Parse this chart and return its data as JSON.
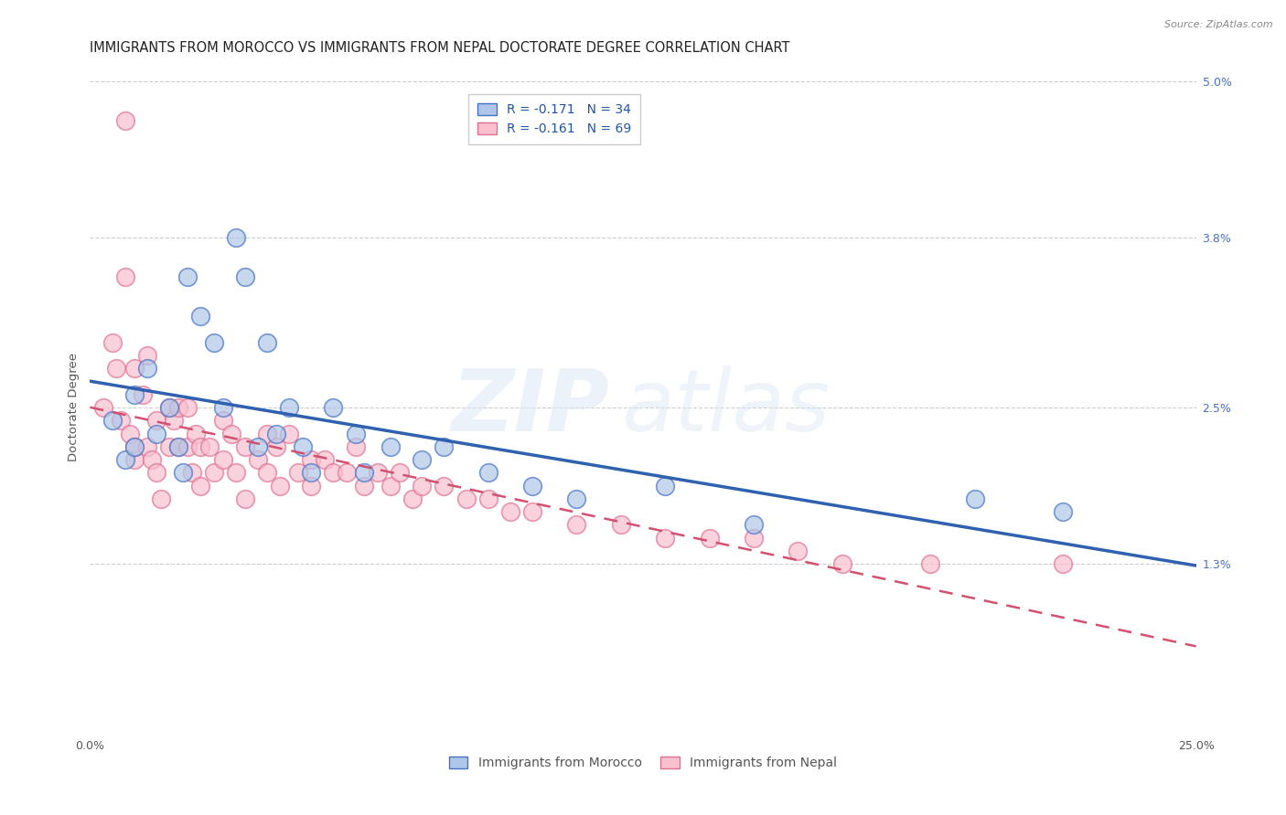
{
  "title": "IMMIGRANTS FROM MOROCCO VS IMMIGRANTS FROM NEPAL DOCTORATE DEGREE CORRELATION CHART",
  "source_text": "Source: ZipAtlas.com",
  "ylabel": "Doctorate Degree",
  "xlim": [
    0.0,
    0.25
  ],
  "ylim": [
    0.0,
    0.05
  ],
  "x_ticks": [
    0.0,
    0.25
  ],
  "x_tick_labels": [
    "0.0%",
    "25.0%"
  ],
  "y_ticks": [
    0.013,
    0.025,
    0.038,
    0.05
  ],
  "y_tick_labels": [
    "1.3%",
    "2.5%",
    "3.8%",
    "5.0%"
  ],
  "morocco_color": "#aec6e8",
  "nepal_color": "#f9c0d0",
  "morocco_edge_color": "#4472c4",
  "nepal_edge_color": "#e07090",
  "morocco_line_color": "#3060b0",
  "nepal_line_color": "#d45070",
  "legend_label1": "R = -0.171   N = 34",
  "legend_label2": "R = -0.161   N = 69",
  "legend_label_morocco": "Immigrants from Morocco",
  "legend_label_nepal": "Immigrants from Nepal",
  "watermark_zip": "ZIP",
  "watermark_atlas": "atlas",
  "background_color": "#ffffff",
  "title_fontsize": 10.5,
  "tick_fontsize": 9,
  "morocco_x": [
    0.005,
    0.008,
    0.01,
    0.01,
    0.013,
    0.015,
    0.018,
    0.02,
    0.021,
    0.022,
    0.025,
    0.028,
    0.03,
    0.033,
    0.035,
    0.038,
    0.04,
    0.042,
    0.045,
    0.048,
    0.05,
    0.055,
    0.06,
    0.062,
    0.068,
    0.075,
    0.08,
    0.09,
    0.1,
    0.11,
    0.13,
    0.15,
    0.2,
    0.22
  ],
  "morocco_y": [
    0.024,
    0.021,
    0.026,
    0.022,
    0.028,
    0.023,
    0.025,
    0.022,
    0.02,
    0.035,
    0.032,
    0.03,
    0.025,
    0.038,
    0.035,
    0.022,
    0.03,
    0.023,
    0.025,
    0.022,
    0.02,
    0.025,
    0.023,
    0.02,
    0.022,
    0.021,
    0.022,
    0.02,
    0.019,
    0.018,
    0.019,
    0.016,
    0.018,
    0.017
  ],
  "nepal_x": [
    0.003,
    0.005,
    0.006,
    0.007,
    0.008,
    0.008,
    0.009,
    0.01,
    0.01,
    0.01,
    0.012,
    0.013,
    0.013,
    0.014,
    0.015,
    0.015,
    0.016,
    0.018,
    0.018,
    0.019,
    0.02,
    0.02,
    0.022,
    0.022,
    0.023,
    0.024,
    0.025,
    0.025,
    0.027,
    0.028,
    0.03,
    0.03,
    0.032,
    0.033,
    0.035,
    0.035,
    0.038,
    0.04,
    0.04,
    0.042,
    0.043,
    0.045,
    0.047,
    0.05,
    0.05,
    0.053,
    0.055,
    0.058,
    0.06,
    0.062,
    0.065,
    0.068,
    0.07,
    0.073,
    0.075,
    0.08,
    0.085,
    0.09,
    0.095,
    0.1,
    0.11,
    0.12,
    0.13,
    0.14,
    0.15,
    0.16,
    0.17,
    0.19,
    0.22
  ],
  "nepal_y": [
    0.025,
    0.03,
    0.028,
    0.024,
    0.035,
    0.047,
    0.023,
    0.021,
    0.028,
    0.022,
    0.026,
    0.022,
    0.029,
    0.021,
    0.024,
    0.02,
    0.018,
    0.025,
    0.022,
    0.024,
    0.025,
    0.022,
    0.025,
    0.022,
    0.02,
    0.023,
    0.022,
    0.019,
    0.022,
    0.02,
    0.024,
    0.021,
    0.023,
    0.02,
    0.022,
    0.018,
    0.021,
    0.023,
    0.02,
    0.022,
    0.019,
    0.023,
    0.02,
    0.021,
    0.019,
    0.021,
    0.02,
    0.02,
    0.022,
    0.019,
    0.02,
    0.019,
    0.02,
    0.018,
    0.019,
    0.019,
    0.018,
    0.018,
    0.017,
    0.017,
    0.016,
    0.016,
    0.015,
    0.015,
    0.015,
    0.014,
    0.013,
    0.013,
    0.013
  ]
}
